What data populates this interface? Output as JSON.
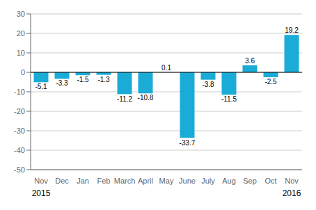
{
  "chart_data": {
    "type": "bar",
    "categories": [
      "Nov",
      "Dec",
      "Jan",
      "Feb",
      "March",
      "April",
      "May",
      "June",
      "July",
      "Aug",
      "Sep",
      "Oct",
      "Nov"
    ],
    "values": [
      -5.1,
      -3.3,
      -1.5,
      -1.3,
      -11.2,
      -10.8,
      0.1,
      -33.7,
      -3.8,
      -11.5,
      3.6,
      -2.5,
      19.2
    ],
    "color": "#1aabd7",
    "ylim": [
      -50,
      30
    ],
    "yticks": [
      -50,
      -40,
      -30,
      -20,
      -10,
      0,
      10,
      20,
      30
    ],
    "grid": true,
    "data_labels": true,
    "annotations": [
      {
        "text": "2015",
        "index": 0
      },
      {
        "text": "2016",
        "index": 12
      }
    ]
  }
}
